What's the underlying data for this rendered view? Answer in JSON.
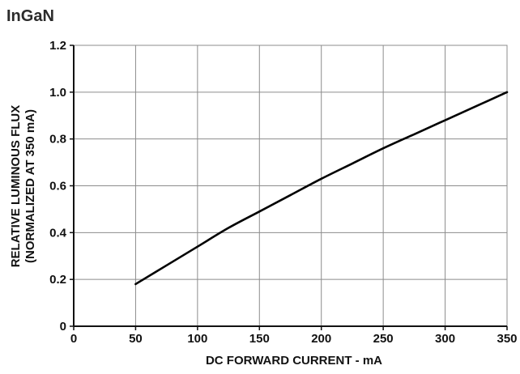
{
  "chart_data": {
    "type": "line",
    "title": "InGaN",
    "xlabel": "DC FORWARD CURRENT - mA",
    "ylabel_lines": [
      "RELATIVE LUMINOUS FLUX",
      "(NORMALIZED AT 350 mA)"
    ],
    "xlim": [
      0,
      350
    ],
    "ylim": [
      0,
      1.2
    ],
    "xticks": [
      0,
      50,
      100,
      150,
      200,
      250,
      300,
      350
    ],
    "yticks": [
      0,
      0.2,
      0.4,
      0.6,
      0.8,
      1.0,
      1.2
    ],
    "ytick_labels": [
      "0",
      "0.2",
      "0.4",
      "0.6",
      "0.8",
      "1.0",
      "1.2"
    ],
    "grid": true,
    "line_color": "#000000",
    "series": [
      {
        "x": [
          50,
          75,
          100,
          125,
          150,
          175,
          200,
          225,
          250,
          275,
          300,
          325,
          350
        ],
        "y": [
          0.18,
          0.26,
          0.34,
          0.42,
          0.49,
          0.56,
          0.63,
          0.695,
          0.76,
          0.82,
          0.88,
          0.94,
          1.0
        ]
      }
    ]
  }
}
